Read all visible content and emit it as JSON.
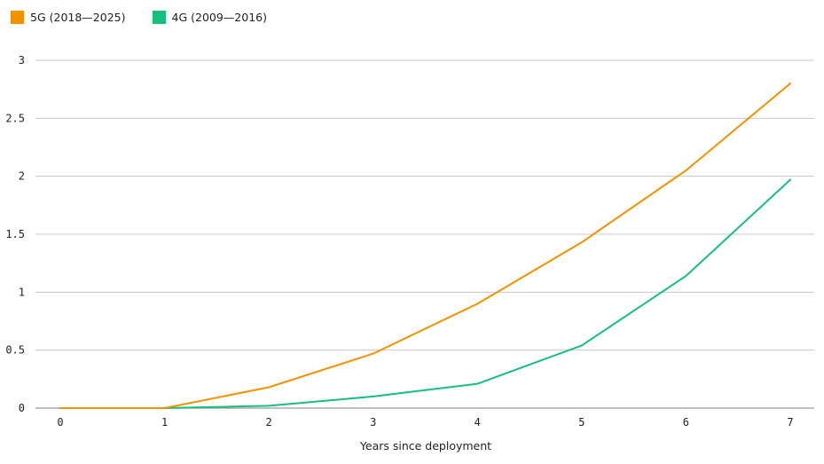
{
  "chart_data": {
    "type": "line",
    "title": "",
    "xlabel": "Years since deployment",
    "ylabel": "",
    "x": [
      0,
      1,
      2,
      3,
      4,
      5,
      6,
      7
    ],
    "xlim": [
      0,
      7
    ],
    "ylim": [
      0,
      3
    ],
    "y_ticks": [
      "0",
      "0.5",
      "1",
      "1.5",
      "2",
      "2.5",
      "3"
    ],
    "y_tick_values": [
      0,
      0.5,
      1,
      1.5,
      2,
      2.5,
      3
    ],
    "x_ticks": [
      "0",
      "1",
      "2",
      "3",
      "4",
      "5",
      "6",
      "7"
    ],
    "grid": "horizontal",
    "legend_position": "top-left",
    "series": [
      {
        "name": "5G (2018—2025)",
        "color": "#F39200",
        "values": [
          0,
          0,
          0.18,
          0.47,
          0.9,
          1.43,
          2.05,
          2.8
        ]
      },
      {
        "name": "4G (2009—2016)",
        "color": "#17BF7D",
        "values": [
          0,
          0,
          0.02,
          0.1,
          0.21,
          0.54,
          1.14,
          1.97
        ]
      }
    ]
  }
}
